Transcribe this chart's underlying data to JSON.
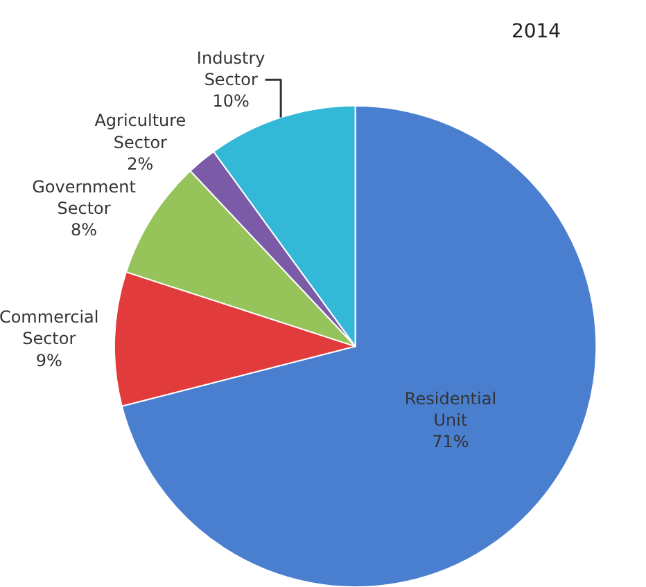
{
  "chart_data": {
    "type": "pie",
    "title": "2014",
    "categories": [
      "Residential Unit",
      "Commercial Sector",
      "Government Sector",
      "Agriculture Sector",
      "Industry Sector"
    ],
    "values": [
      71,
      9,
      8,
      2,
      10
    ],
    "value_labels": [
      "71%",
      "9%",
      "8%",
      "2%",
      "10%"
    ],
    "colors": [
      "#4a7fd0",
      "#e23b3b",
      "#96c45a",
      "#7b5aa8",
      "#33b8d8"
    ],
    "legend": false
  }
}
